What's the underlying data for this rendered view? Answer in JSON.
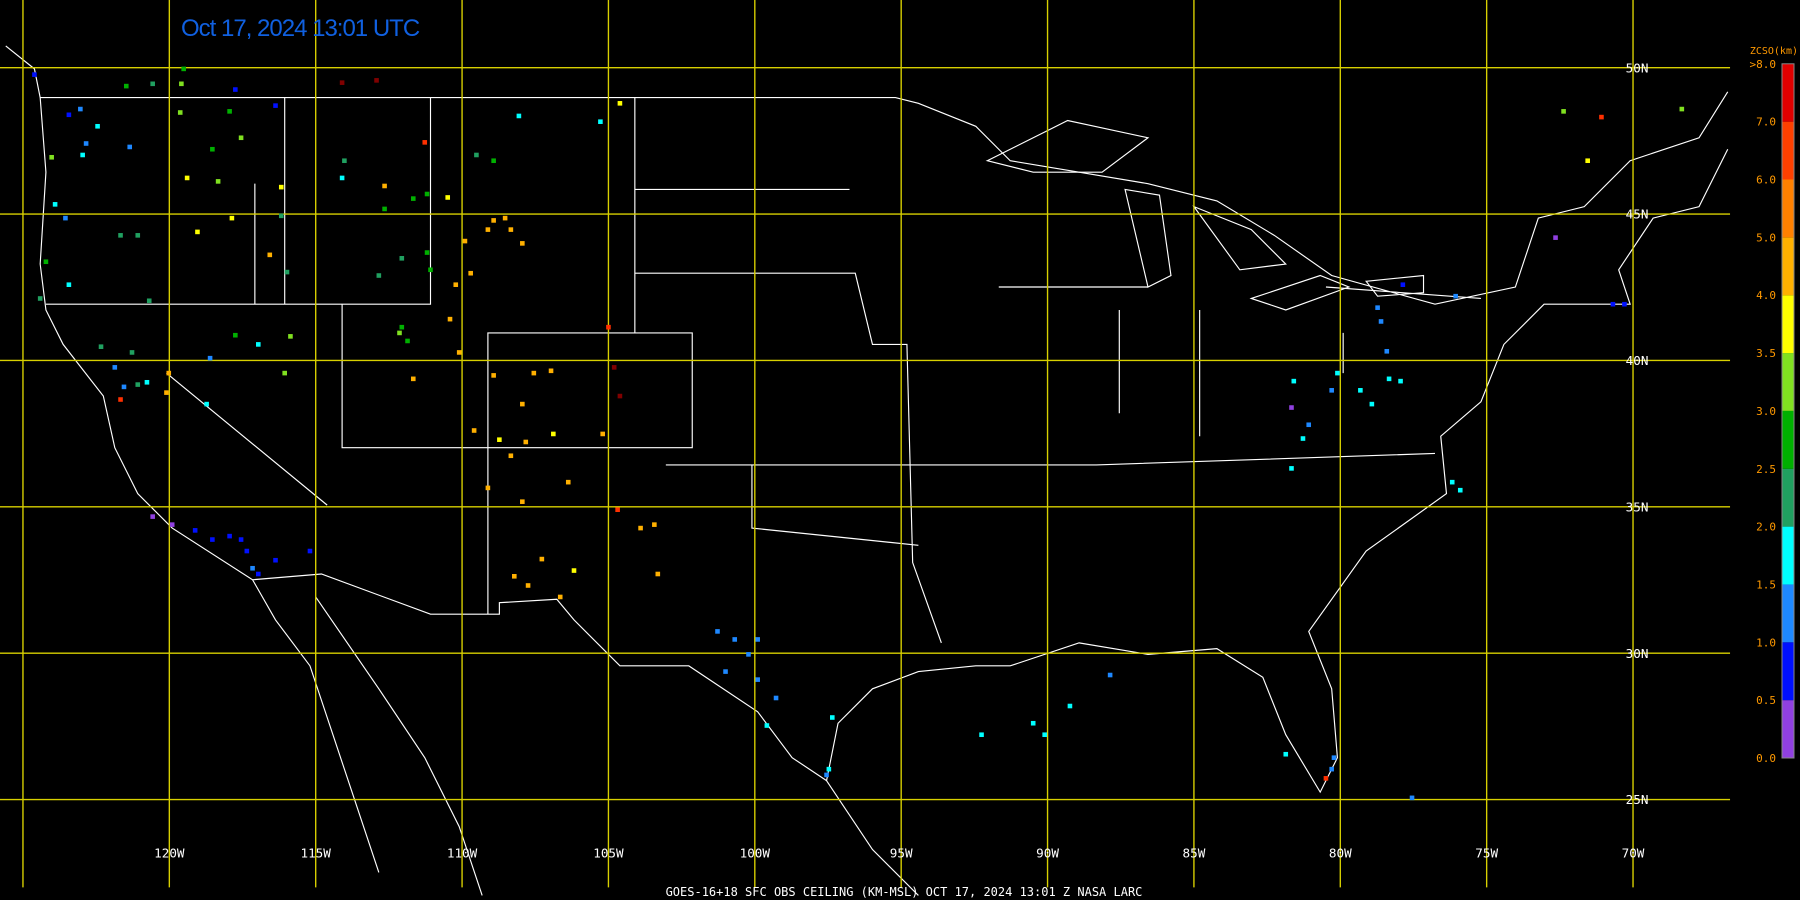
{
  "header": {
    "title": "Oct 17, 2024 13:01 UTC"
  },
  "footer": {
    "caption": "GOES-16+18  SFC OBS CEILING (KM-MSL)  OCT 17, 2024 13:01 Z  NASA LARC"
  },
  "map": {
    "lat_labels": [
      "50N",
      "45N",
      "40N",
      "35N",
      "30N",
      "25N"
    ],
    "lon_labels": [
      "120W",
      "115W",
      "110W",
      "105W",
      "100W",
      "95W",
      "90W",
      "85W",
      "80W",
      "75W",
      "70W"
    ]
  },
  "legend": {
    "title": "ZCSO(km)",
    "labels": [
      "0.0",
      "0.5",
      "1.0",
      "1.5",
      "2.0",
      "2.5",
      "3.0",
      "3.5",
      "4.0",
      "5.0",
      "6.0",
      "7.0",
      ">8.0"
    ],
    "colors": [
      "#9040e0",
      "#0010ff",
      "#1e88ff",
      "#00ffff",
      "#20a060",
      "#00b000",
      "#80e020",
      "#ffff00",
      "#ffb000",
      "#ff8000",
      "#ff4000",
      "#e00000"
    ]
  }
}
